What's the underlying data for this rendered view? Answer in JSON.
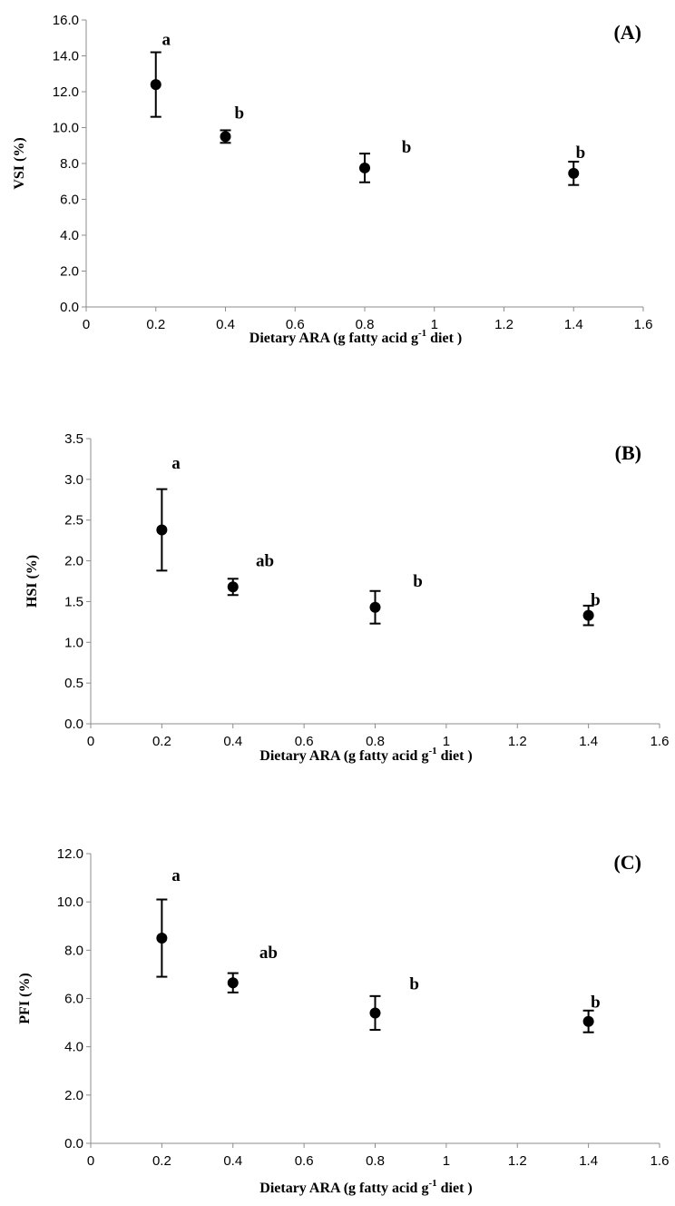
{
  "chart_data": [
    {
      "type": "scatter",
      "panel_label": "(A)",
      "ylabel": "VSI (%)",
      "xlabel": {
        "main": "Dietary ARA  (g fatty acid g",
        "sup": "-1",
        "tail": " diet )"
      },
      "xlim": [
        0,
        1.6
      ],
      "ylim": [
        0,
        16
      ],
      "xticks": [
        0,
        0.2,
        0.4,
        0.6,
        0.8,
        1,
        1.2,
        1.4,
        1.6
      ],
      "xtick_labels": [
        "0",
        "0.2",
        "0.4",
        "0.6",
        "0.8",
        "1",
        "1.2",
        "1.4",
        "1.6"
      ],
      "yticks": [
        0,
        2,
        4,
        6,
        8,
        10,
        12,
        14,
        16
      ],
      "ytick_labels": [
        "0.0",
        "2.0",
        "4.0",
        "6.0",
        "8.0",
        "10.0",
        "12.0",
        "14.0",
        "16.0"
      ],
      "points": [
        {
          "x": 0.2,
          "y": 12.4,
          "err": 1.8,
          "letter": "a",
          "letter_x": 0.23,
          "letter_y": 14.9
        },
        {
          "x": 0.4,
          "y": 9.5,
          "err": 0.35,
          "letter": "b",
          "letter_x": 0.44,
          "letter_y": 10.8
        },
        {
          "x": 0.8,
          "y": 7.75,
          "err": 0.8,
          "letter": "b",
          "letter_x": 0.92,
          "letter_y": 8.9
        },
        {
          "x": 1.4,
          "y": 7.45,
          "err": 0.65,
          "letter": "b",
          "letter_x": 1.42,
          "letter_y": 8.6
        }
      ]
    },
    {
      "type": "scatter",
      "panel_label": "(B)",
      "ylabel": "HSI (%)",
      "xlabel": {
        "main": "Dietary ARA  (g fatty acid g",
        "sup": "-1",
        "tail": " diet )"
      },
      "xlim": [
        0,
        1.6
      ],
      "ylim": [
        0,
        3.5
      ],
      "xticks": [
        0,
        0.2,
        0.4,
        0.6,
        0.8,
        1,
        1.2,
        1.4,
        1.6
      ],
      "xtick_labels": [
        "0",
        "0.2",
        "0.4",
        "0.6",
        "0.8",
        "1",
        "1.2",
        "1.4",
        "1.6"
      ],
      "yticks": [
        0,
        0.5,
        1,
        1.5,
        2,
        2.5,
        3,
        3.5
      ],
      "ytick_labels": [
        "0.0",
        "0.5",
        "1.0",
        "1.5",
        "2.0",
        "2.5",
        "3.0",
        "3.5"
      ],
      "points": [
        {
          "x": 0.2,
          "y": 2.38,
          "err": 0.5,
          "letter": "a",
          "letter_x": 0.24,
          "letter_y": 3.2
        },
        {
          "x": 0.4,
          "y": 1.68,
          "err": 0.1,
          "letter": "ab",
          "letter_x": 0.49,
          "letter_y": 2.0
        },
        {
          "x": 0.8,
          "y": 1.43,
          "err": 0.2,
          "letter": "b",
          "letter_x": 0.92,
          "letter_y": 1.75
        },
        {
          "x": 1.4,
          "y": 1.33,
          "err": 0.12,
          "letter": "b",
          "letter_x": 1.42,
          "letter_y": 1.52
        }
      ]
    },
    {
      "type": "scatter",
      "panel_label": "(C)",
      "ylabel": "PFI (%)",
      "xlabel": {
        "main": "Dietary ARA  (g fatty acid g",
        "sup": "-1",
        "tail": " diet )"
      },
      "xlim": [
        0,
        1.6
      ],
      "ylim": [
        0,
        12
      ],
      "xticks": [
        0,
        0.2,
        0.4,
        0.6,
        0.8,
        1,
        1.2,
        1.4,
        1.6
      ],
      "xtick_labels": [
        "0",
        "0.2",
        "0.4",
        "0.6",
        "0.8",
        "1",
        "1.2",
        "1.4",
        "1.6"
      ],
      "yticks": [
        0,
        2,
        4,
        6,
        8,
        10,
        12
      ],
      "ytick_labels": [
        "0.0",
        "2.0",
        "4.0",
        "6.0",
        "8.0",
        "10.0",
        "12.0"
      ],
      "points": [
        {
          "x": 0.2,
          "y": 8.5,
          "err": 1.6,
          "letter": "a",
          "letter_x": 0.24,
          "letter_y": 11.1
        },
        {
          "x": 0.4,
          "y": 6.65,
          "err": 0.4,
          "letter": "ab",
          "letter_x": 0.5,
          "letter_y": 7.9
        },
        {
          "x": 0.8,
          "y": 5.4,
          "err": 0.7,
          "letter": "b",
          "letter_x": 0.91,
          "letter_y": 6.6
        },
        {
          "x": 1.4,
          "y": 5.05,
          "err": 0.45,
          "letter": "b",
          "letter_x": 1.42,
          "letter_y": 5.85
        }
      ]
    }
  ]
}
